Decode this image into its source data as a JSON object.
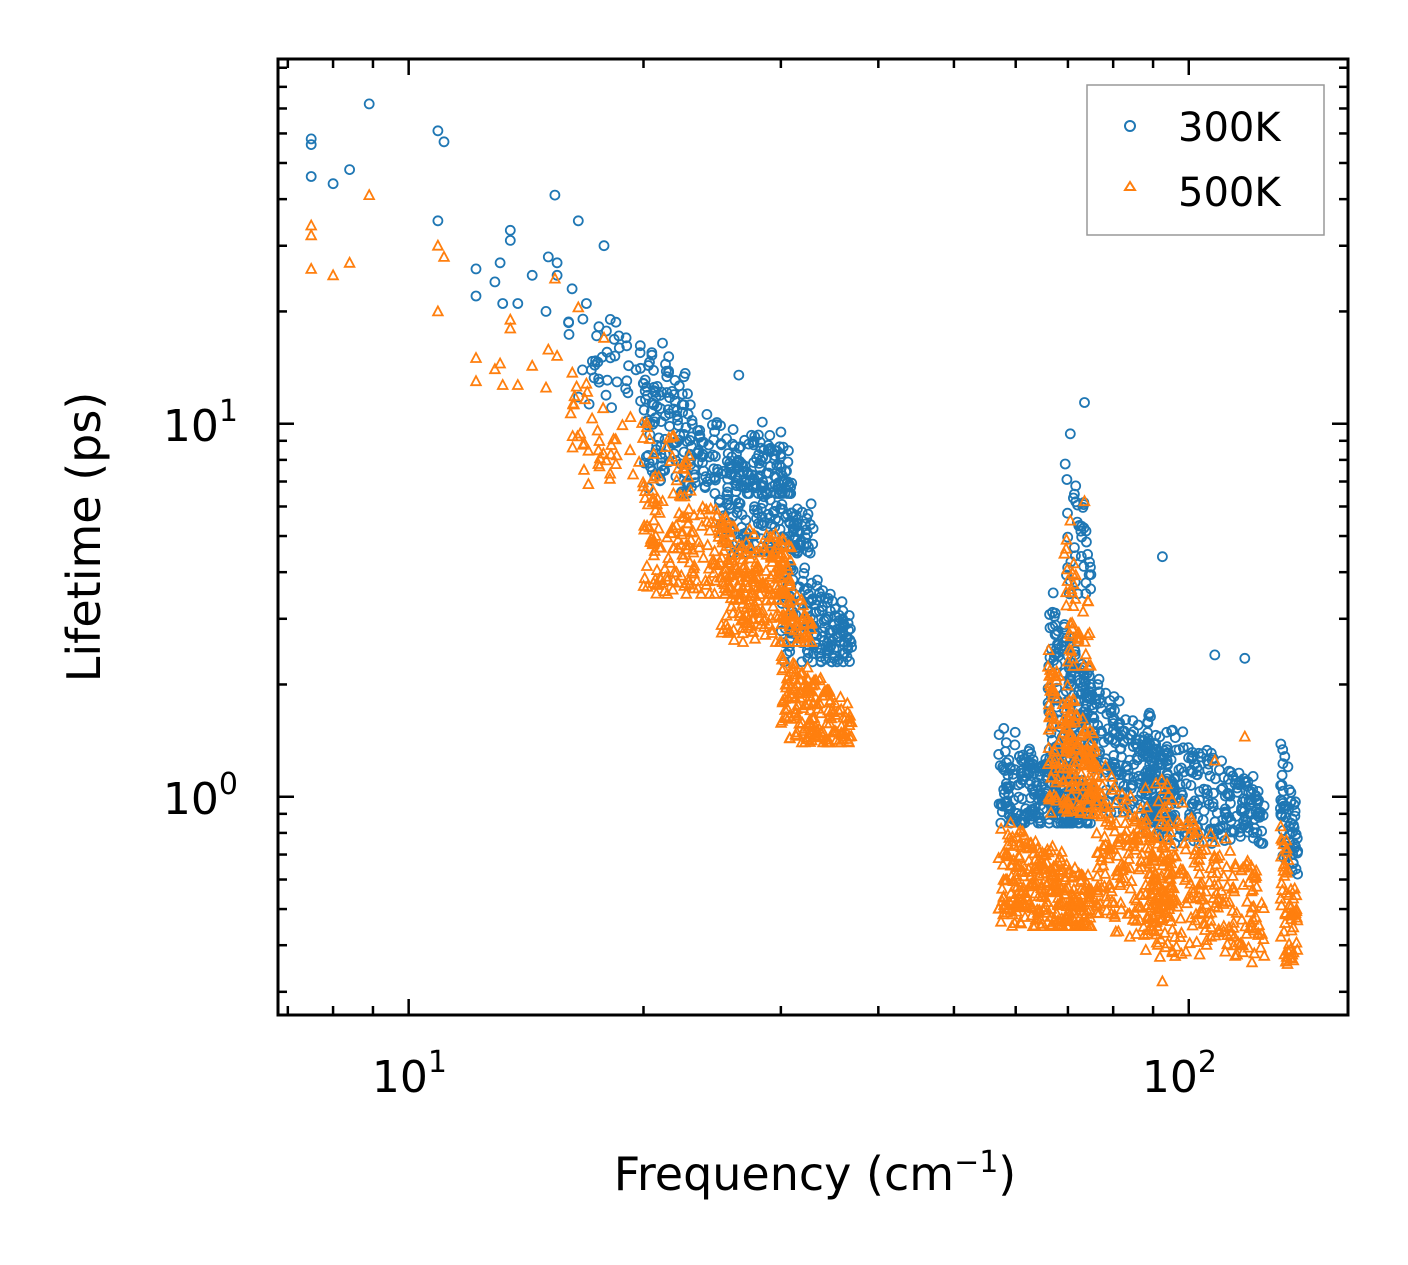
{
  "chart_data": {
    "type": "scatter",
    "title": "",
    "xlabel": "Frequency (cm",
    "xlabel_sup": "−1",
    "xlabel_suffix": ")",
    "ylabel": "Lifetime (ps)",
    "xscale": "log",
    "yscale": "log",
    "xlim": [
      6.8,
      160
    ],
    "ylim": [
      0.26,
      95
    ],
    "x_ticks": [
      {
        "base": "10",
        "exp": "1",
        "value": 10
      },
      {
        "base": "10",
        "exp": "2",
        "value": 100
      }
    ],
    "y_ticks": [
      {
        "base": "10",
        "exp": "0",
        "value": 1
      },
      {
        "base": "10",
        "exp": "1",
        "value": 10
      }
    ],
    "legend_position": "top-right",
    "series": [
      {
        "name": "300K",
        "marker": "circle",
        "color": "#1f77b4",
        "points": [
          [
            7.5,
            58
          ],
          [
            7.5,
            56
          ],
          [
            7.5,
            46
          ],
          [
            8.0,
            44
          ],
          [
            8.4,
            48
          ],
          [
            8.9,
            72
          ],
          [
            10.9,
            61
          ],
          [
            11.1,
            57
          ],
          [
            10.9,
            35
          ],
          [
            12.2,
            26
          ],
          [
            12.2,
            22
          ],
          [
            12.9,
            24
          ],
          [
            13.1,
            27
          ],
          [
            13.2,
            21
          ],
          [
            13.5,
            33
          ],
          [
            13.5,
            31
          ],
          [
            13.8,
            21
          ],
          [
            14.4,
            25
          ],
          [
            15.1,
            28
          ],
          [
            15.5,
            27
          ],
          [
            15.5,
            25
          ],
          [
            15.4,
            41
          ],
          [
            15.0,
            20
          ],
          [
            16.2,
            23
          ],
          [
            16.5,
            35
          ],
          [
            16.9,
            21
          ],
          [
            17.2,
            14.7
          ],
          [
            17.8,
            30
          ],
          [
            18.6,
            17.2
          ],
          [
            19.0,
            17.0
          ],
          [
            19.8,
            15.5
          ],
          [
            20.1,
            13.1
          ],
          [
            20.6,
            13.9
          ]
        ],
        "clusters": [
          {
            "x": [
              16,
              23
            ],
            "y": [
              10.5,
              24
            ],
            "n": 70
          },
          {
            "x": [
              20,
              31
            ],
            "y": [
              6.5,
              13
            ],
            "n": 260
          },
          {
            "x": [
              25,
              33
            ],
            "y": [
              4.5,
              8.5
            ],
            "n": 160
          },
          {
            "x": [
              30,
              37
            ],
            "y": [
              2.3,
              4.8
            ],
            "n": 170
          },
          {
            "x": [
              57,
              75
            ],
            "y": [
              0.85,
              1.6
            ],
            "n": 300
          },
          {
            "x": [
              66,
              76
            ],
            "y": [
              1.2,
              4.0
            ],
            "n": 180
          },
          {
            "x": [
              69,
              75
            ],
            "y": [
              3.5,
              9.5
            ],
            "n": 40
          },
          {
            "x": [
              76,
              95
            ],
            "y": [
              0.85,
              2.2
            ],
            "n": 220
          },
          {
            "x": [
              88,
              125
            ],
            "y": [
              0.75,
              1.8
            ],
            "n": 260
          },
          {
            "x": [
              131,
              138
            ],
            "y": [
              0.62,
              1.6
            ],
            "n": 60
          }
        ],
        "extra": [
          [
            73.5,
            11.4
          ],
          [
            70.5,
            9.4
          ],
          [
            92.5,
            4.4
          ],
          [
            108,
            2.4
          ],
          [
            118,
            2.35
          ],
          [
            30,
            9.5
          ],
          [
            32.8,
            6.1
          ],
          [
            26.5,
            13.5
          ],
          [
            28.4,
            10.1
          ]
        ]
      },
      {
        "name": "500K",
        "marker": "triangle",
        "color": "#ff7f0e",
        "points": [
          [
            7.5,
            34
          ],
          [
            7.5,
            32
          ],
          [
            7.5,
            26
          ],
          [
            8.0,
            25
          ],
          [
            8.4,
            27
          ],
          [
            8.9,
            41
          ],
          [
            10.9,
            30
          ],
          [
            11.1,
            28
          ],
          [
            10.9,
            20
          ],
          [
            12.2,
            15
          ],
          [
            12.2,
            13
          ],
          [
            12.9,
            14
          ],
          [
            13.1,
            14.5
          ],
          [
            13.2,
            12.7
          ],
          [
            13.5,
            19
          ],
          [
            13.5,
            18
          ],
          [
            13.8,
            12.7
          ],
          [
            14.4,
            14.3
          ],
          [
            15.1,
            15.8
          ],
          [
            15.5,
            15.2
          ],
          [
            15.4,
            24.5
          ],
          [
            15.0,
            12.5
          ],
          [
            16.5,
            20.5
          ],
          [
            16.9,
            12.8
          ],
          [
            17.8,
            17
          ]
        ],
        "clusters": [
          {
            "x": [
              16,
              23
            ],
            "y": [
              6.5,
              15
            ],
            "n": 70
          },
          {
            "x": [
              20,
              31
            ],
            "y": [
              3.5,
              7.5
            ],
            "n": 260
          },
          {
            "x": [
              25,
              33
            ],
            "y": [
              2.6,
              4.8
            ],
            "n": 160
          },
          {
            "x": [
              30,
              37
            ],
            "y": [
              1.4,
              2.6
            ],
            "n": 170
          },
          {
            "x": [
              57,
              75
            ],
            "y": [
              0.45,
              0.95
            ],
            "n": 300
          },
          {
            "x": [
              66,
              76
            ],
            "y": [
              0.9,
              2.6
            ],
            "n": 180
          },
          {
            "x": [
              69,
              75
            ],
            "y": [
              2.2,
              6.0
            ],
            "n": 40
          },
          {
            "x": [
              76,
              95
            ],
            "y": [
              0.42,
              1.4
            ],
            "n": 220
          },
          {
            "x": [
              88,
              125
            ],
            "y": [
              0.36,
              1.3
            ],
            "n": 260
          },
          {
            "x": [
              131,
              138
            ],
            "y": [
              0.35,
              0.95
            ],
            "n": 60
          }
        ],
        "extra": [
          [
            73.5,
            6.2
          ],
          [
            70.5,
            5.5
          ],
          [
            92.5,
            0.32
          ],
          [
            108,
            1.25
          ],
          [
            118,
            1.45
          ],
          [
            17.5,
            7.8
          ]
        ]
      }
    ]
  }
}
